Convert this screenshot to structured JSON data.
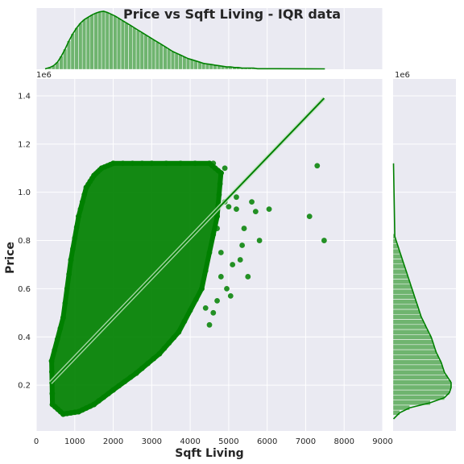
{
  "chart_data": {
    "type": "scatter",
    "title": "Price vs Sqft Living - IQR data",
    "xlabel": "Sqft Living",
    "ylabel": "Price",
    "xlim": [
      0,
      9000
    ],
    "ylim": [
      0.01,
      1.47
    ],
    "y_scale_note": "1e6",
    "x_ticks": [
      0,
      1000,
      2000,
      3000,
      4000,
      5000,
      6000,
      7000,
      8000,
      9000
    ],
    "y_ticks": [
      0.2,
      0.4,
      0.6,
      0.8,
      1.0,
      1.2,
      1.4
    ],
    "grid": true,
    "legend": "none",
    "colors": {
      "points": "#008000",
      "hist": "#6fb46f",
      "kde": "#008000",
      "background": "#eaeaf2",
      "grid": "#ffffff"
    },
    "regression_line": {
      "x": [
        370,
        7480
      ],
      "y": [
        0.21,
        1.39
      ]
    },
    "point_cloud_envelope": {
      "upper": [
        [
          400,
          0.3
        ],
        [
          700,
          0.48
        ],
        [
          900,
          0.72
        ],
        [
          1100,
          0.9
        ],
        [
          1300,
          1.02
        ],
        [
          1500,
          1.07
        ],
        [
          1700,
          1.1
        ],
        [
          2000,
          1.12
        ],
        [
          3000,
          1.12
        ],
        [
          4500,
          1.12
        ],
        [
          4800,
          1.08
        ]
      ],
      "lower": [
        [
          4800,
          1.08
        ],
        [
          4700,
          0.9
        ],
        [
          4300,
          0.6
        ],
        [
          3700,
          0.42
        ],
        [
          3200,
          0.33
        ],
        [
          2600,
          0.25
        ],
        [
          2000,
          0.18
        ],
        [
          1500,
          0.12
        ],
        [
          1100,
          0.09
        ],
        [
          700,
          0.08
        ],
        [
          420,
          0.12
        ],
        [
          400,
          0.3
        ]
      ]
    },
    "outliers": [
      [
        7300,
        1.11
      ],
      [
        7100,
        0.9
      ],
      [
        7480,
        0.8
      ],
      [
        6050,
        0.93
      ],
      [
        5600,
        0.96
      ],
      [
        5700,
        0.92
      ],
      [
        5200,
        0.93
      ],
      [
        5000,
        0.94
      ],
      [
        4900,
        0.96
      ],
      [
        5400,
        0.85
      ],
      [
        5350,
        0.78
      ],
      [
        5800,
        0.8
      ],
      [
        5300,
        0.72
      ],
      [
        5100,
        0.7
      ],
      [
        5500,
        0.65
      ],
      [
        4800,
        0.75
      ],
      [
        4950,
        0.6
      ],
      [
        5050,
        0.57
      ],
      [
        4600,
        0.5
      ],
      [
        4500,
        0.45
      ],
      [
        4400,
        0.52
      ],
      [
        4700,
        0.55
      ],
      [
        5200,
        0.98
      ],
      [
        4900,
        1.1
      ],
      [
        4600,
        1.12
      ],
      [
        4700,
        0.85
      ],
      [
        4800,
        0.65
      ]
    ],
    "marginal_x_hist": {
      "bin_edges_start": 300,
      "bin_width": 100,
      "counts": [
        3,
        6,
        12,
        22,
        34,
        48,
        60,
        70,
        78,
        84,
        88,
        92,
        95,
        97,
        98,
        96,
        93,
        90,
        86,
        82,
        78,
        74,
        70,
        66,
        62,
        58,
        54,
        50,
        46,
        42,
        38,
        34,
        30,
        27,
        24,
        21,
        18,
        16,
        14,
        12,
        10,
        9,
        8,
        7,
        6,
        5,
        4,
        4,
        3,
        3,
        2,
        2,
        2,
        2,
        1,
        1,
        1,
        1,
        1,
        1
      ]
    },
    "marginal_y_hist": {
      "bin_edges_start": 0.075,
      "bin_width": 0.0209,
      "counts": [
        8,
        20,
        45,
        62,
        68,
        70,
        70,
        66,
        62,
        60,
        58,
        55,
        52,
        50,
        48,
        46,
        43,
        40,
        37,
        34,
        32,
        30,
        28,
        26,
        24,
        22,
        20,
        18,
        16,
        14,
        12,
        10,
        8,
        6,
        4,
        2
      ]
    }
  }
}
